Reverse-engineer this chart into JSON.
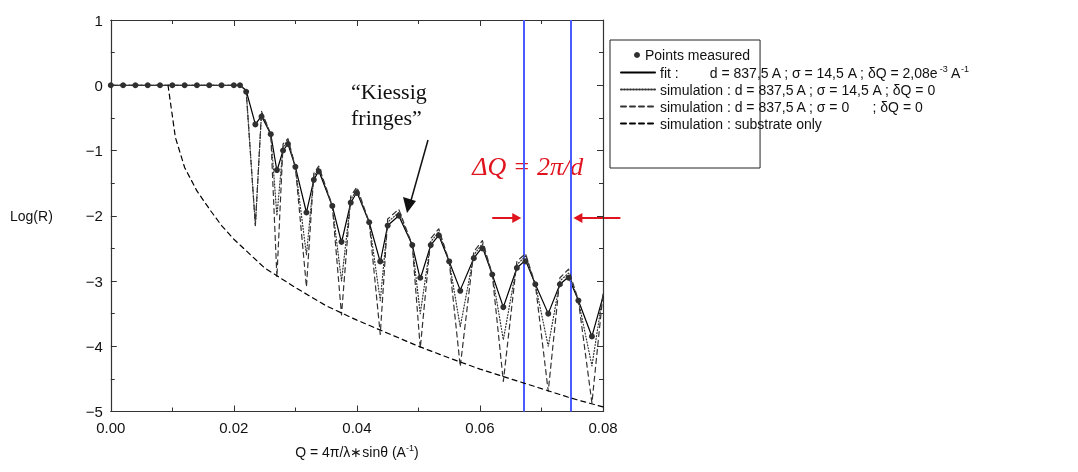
{
  "chart_data": {
    "type": "line",
    "xlabel": "Q = 4π/λ∗sinθ (A$^{-1}$)",
    "ylabel": "Log(R)",
    "xlim": [
      0,
      0.08
    ],
    "ylim": [
      -5,
      1
    ],
    "xticks": [
      {
        "value": 0,
        "label": "0.00"
      },
      {
        "value": 0.02,
        "label": "0.02"
      },
      {
        "value": 0.04,
        "label": "0.04"
      },
      {
        "value": 0.06,
        "label": "0.06"
      },
      {
        "value": 0.08,
        "label": "0.08"
      }
    ],
    "yticks": [
      {
        "value": -5,
        "label": "−5"
      },
      {
        "value": -4,
        "label": "−4"
      },
      {
        "value": -3,
        "label": "−3"
      },
      {
        "value": -2,
        "label": "−2"
      },
      {
        "value": -1,
        "label": "−1"
      },
      0,
      1
    ],
    "grid": false,
    "legend": "top right",
    "series": [
      {
        "name": "Points measured",
        "type": "scatter",
        "marker": "circle",
        "color": "#303030",
        "x": [
          0,
          0.002,
          0.004,
          0.006,
          0.008,
          0.01,
          0.012,
          0.014,
          0.016,
          0.018,
          0.02,
          0.021,
          0.022,
          0.0235,
          0.0245,
          0.026,
          0.027,
          0.028,
          0.0288,
          0.03,
          0.0318,
          0.033,
          0.0338,
          0.036,
          0.0375,
          0.039,
          0.04,
          0.042,
          0.0438,
          0.045,
          0.0468,
          0.049,
          0.0503,
          0.052,
          0.0533,
          0.055,
          0.0568,
          0.059,
          0.0604,
          0.062,
          0.0638,
          0.066,
          0.0674,
          0.069,
          0.0711,
          0.073,
          0.0744,
          0.076,
          0.0782
        ],
        "values": [
          0,
          0,
          0,
          0,
          0,
          0,
          0,
          0,
          0,
          0,
          0,
          0,
          -0.1,
          -0.6,
          -0.48,
          -0.75,
          -1.3,
          -1.0,
          -0.9,
          -1.25,
          -1.95,
          -1.45,
          -1.32,
          -1.85,
          -2.4,
          -1.8,
          -1.65,
          -2.1,
          -2.7,
          -2.15,
          -2.0,
          -2.45,
          -2.95,
          -2.45,
          -2.3,
          -2.7,
          -3.15,
          -2.65,
          -2.5,
          -2.9,
          -3.4,
          -2.8,
          -2.7,
          -3.05,
          -3.5,
          -3.05,
          -2.95,
          -3.3,
          -3.85
        ]
      },
      {
        "name": "fit :        d = 837,5 A ; σ = 14,5 A ; δQ = 2,08e$^{-3}$ A$^{-1}$",
        "line_style": "solid",
        "marker": "none",
        "color": "#000000",
        "x": [
          0,
          0.021,
          0.022,
          0.0235,
          0.0245,
          0.026,
          0.027,
          0.028,
          0.0288,
          0.03,
          0.0318,
          0.033,
          0.0338,
          0.036,
          0.0375,
          0.039,
          0.04,
          0.042,
          0.0438,
          0.045,
          0.0468,
          0.049,
          0.0503,
          0.052,
          0.0533,
          0.055,
          0.0568,
          0.059,
          0.0604,
          0.062,
          0.0638,
          0.066,
          0.0674,
          0.069,
          0.0711,
          0.073,
          0.0744,
          0.076,
          0.0782,
          0.08
        ],
        "values": [
          0,
          0,
          -0.08,
          -0.6,
          -0.47,
          -0.75,
          -1.31,
          -1.0,
          -0.9,
          -1.25,
          -1.95,
          -1.45,
          -1.31,
          -1.85,
          -2.41,
          -1.8,
          -1.64,
          -2.1,
          -2.71,
          -2.15,
          -2.0,
          -2.45,
          -2.97,
          -2.45,
          -2.3,
          -2.7,
          -3.14,
          -2.65,
          -2.48,
          -2.9,
          -3.4,
          -2.8,
          -2.68,
          -3.05,
          -3.5,
          -3.05,
          -2.94,
          -3.3,
          -3.85,
          -3.24
        ]
      },
      {
        "name": "simulation : d = 837,5 A ; σ = 14,5 A ; δQ = 0",
        "line_style": "dotted",
        "marker": "none",
        "color": "#333333",
        "x": [
          0,
          0.021,
          0.022,
          0.0235,
          0.0245,
          0.026,
          0.027,
          0.028,
          0.0288,
          0.03,
          0.0318,
          0.033,
          0.0338,
          0.036,
          0.0375,
          0.039,
          0.04,
          0.042,
          0.0438,
          0.045,
          0.0468,
          0.049,
          0.0503,
          0.052,
          0.0533,
          0.055,
          0.0568,
          0.059,
          0.0604,
          0.062,
          0.0638,
          0.066,
          0.0674,
          0.069,
          0.0711,
          0.073,
          0.0744,
          0.076,
          0.0782,
          0.08
        ],
        "values": [
          0,
          0,
          -0.08,
          -2.15,
          -0.42,
          -0.75,
          -2.0,
          -0.95,
          -0.85,
          -1.25,
          -2.6,
          -1.4,
          -1.27,
          -1.85,
          -3.0,
          -1.75,
          -1.6,
          -2.1,
          -3.3,
          -2.1,
          -1.95,
          -2.45,
          -3.5,
          -2.4,
          -2.25,
          -2.7,
          -3.7,
          -2.6,
          -2.43,
          -2.9,
          -3.9,
          -2.75,
          -2.62,
          -3.05,
          -4.0,
          -3.0,
          -2.88,
          -3.3,
          -4.3,
          -3.2
        ]
      },
      {
        "name": "simulation : d = 837,5 A ; σ = 0      ; δQ = 0",
        "line_style": "dashed",
        "marker": "none",
        "color": "#333333",
        "x": [
          0,
          0.021,
          0.022,
          0.0235,
          0.0245,
          0.026,
          0.027,
          0.028,
          0.0288,
          0.03,
          0.0318,
          0.033,
          0.0338,
          0.036,
          0.0375,
          0.039,
          0.04,
          0.042,
          0.0438,
          0.045,
          0.0468,
          0.049,
          0.0503,
          0.052,
          0.0533,
          0.055,
          0.0568,
          0.059,
          0.0604,
          0.062,
          0.0638,
          0.066,
          0.0674,
          0.069,
          0.0711,
          0.073,
          0.0744,
          0.076,
          0.0782,
          0.08
        ],
        "values": [
          0,
          0,
          -0.08,
          -2.15,
          -0.4,
          -0.75,
          -2.94,
          -0.9,
          -0.82,
          -1.25,
          -3.09,
          -1.35,
          -1.24,
          -1.85,
          -3.52,
          -1.7,
          -1.56,
          -2.1,
          -3.82,
          -2.05,
          -1.9,
          -2.45,
          -4.03,
          -2.35,
          -2.2,
          -2.7,
          -4.31,
          -2.55,
          -2.38,
          -2.9,
          -4.54,
          -2.7,
          -2.58,
          -3.05,
          -4.69,
          -2.95,
          -2.82,
          -3.3,
          -4.87,
          -3.2
        ]
      },
      {
        "name": "simulation : substrate only",
        "line_style": "dashed",
        "marker": "none",
        "color": "#000000",
        "x": [
          0.0093,
          0.0105,
          0.012,
          0.014,
          0.0162,
          0.018,
          0.02,
          0.025,
          0.03,
          0.035,
          0.04,
          0.045,
          0.05,
          0.055,
          0.06,
          0.065,
          0.07,
          0.075,
          0.08
        ],
        "values": [
          0,
          -0.8,
          -1.26,
          -1.62,
          -1.92,
          -2.15,
          -2.36,
          -2.8,
          -3.1,
          -3.38,
          -3.6,
          -3.8,
          -4.0,
          -4.18,
          -4.35,
          -4.5,
          -4.65,
          -4.8,
          -4.93
        ]
      }
    ],
    "ref_lines": [
      {
        "axis": "x",
        "value": 0.0672,
        "color": "#4a5cff"
      },
      {
        "axis": "x",
        "value": 0.0747,
        "color": "#4a5cff"
      }
    ],
    "annotations": [
      "“Kiessig fringes”",
      "ΔQ = 2π/d"
    ]
  }
}
